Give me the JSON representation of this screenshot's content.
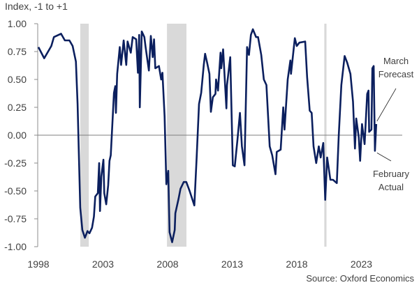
{
  "chart_data": {
    "type": "line",
    "ylabel": "Index, -1 to +1",
    "ylim": [
      -1,
      1
    ],
    "xlim": [
      1998,
      2025.5
    ],
    "yticks": [
      "1.00",
      "0.75",
      "0.50",
      "0.25",
      "0.00",
      "-0.25",
      "-0.50",
      "-0.75",
      "-1.00"
    ],
    "ytick_values": [
      1,
      0.75,
      0.5,
      0.25,
      0,
      -0.25,
      -0.5,
      -0.75,
      -1
    ],
    "xticks": [
      "1998",
      "2003",
      "2008",
      "2013",
      "2018",
      "2023"
    ],
    "xtick_values": [
      1998,
      2003,
      2008,
      2013,
      2018,
      2023
    ],
    "grid": false,
    "source": "Source: Oxford Economics",
    "recessions": [
      [
        2001.24,
        2001.9
      ],
      [
        2007.95,
        2009.46
      ],
      [
        2020.13,
        2020.3
      ]
    ],
    "annotations": [
      {
        "lines": [
          "March",
          "Forecast"
        ],
        "x": 2024.15,
        "y": 0.1
      },
      {
        "lines": [
          "February",
          "Actual"
        ],
        "x": 2024.05,
        "y": -0.14
      }
    ],
    "colors": {
      "line": "#0b1f5e",
      "recession": "#d9d9d9",
      "axis": "#8c8c8c"
    },
    "series": [
      {
        "name": "Index",
        "x": [
          1998.0,
          1998.45,
          1999.0,
          1999.2,
          1999.75,
          2000.05,
          2000.4,
          2000.65,
          2000.9,
          2001.03,
          2001.24,
          2001.4,
          2001.6,
          2001.8,
          2001.95,
          2002.15,
          2002.3,
          2002.4,
          2002.6,
          2002.7,
          2002.77,
          2002.87,
          2003.03,
          2003.1,
          2003.25,
          2003.4,
          2003.5,
          2003.6,
          2003.85,
          2003.95,
          2004.0,
          2004.1,
          2004.3,
          2004.4,
          2004.6,
          2004.8,
          2004.9,
          2005.15,
          2005.3,
          2005.57,
          2005.7,
          2005.8,
          2005.85,
          2006.0,
          2006.2,
          2006.3,
          2006.55,
          2006.7,
          2006.85,
          2006.95,
          2007.05,
          2007.33,
          2007.5,
          2007.6,
          2007.77,
          2007.9,
          2008.05,
          2008.15,
          2008.35,
          2008.55,
          2008.6,
          2008.85,
          2009.0,
          2009.25,
          2009.45,
          2009.7,
          2010.07,
          2010.25,
          2010.43,
          2010.6,
          2010.8,
          2010.9,
          2011.06,
          2011.24,
          2011.35,
          2011.5,
          2011.7,
          2011.75,
          2011.9,
          2012.1,
          2012.15,
          2012.3,
          2012.55,
          2012.6,
          2012.85,
          2013.05,
          2013.2,
          2013.4,
          2013.6,
          2013.75,
          2013.95,
          2014.15,
          2014.3,
          2014.45,
          2014.6,
          2014.85,
          2015.0,
          2015.25,
          2015.45,
          2015.65,
          2015.9,
          2016.1,
          2016.35,
          2016.45,
          2016.75,
          2016.95,
          2017.05,
          2017.3,
          2017.5,
          2017.55,
          2017.85,
          2018.0,
          2018.2,
          2018.65,
          2018.8,
          2019.0,
          2019.15,
          2019.3,
          2019.5,
          2019.7,
          2019.85,
          2020.05,
          2020.2,
          2020.35,
          2020.6,
          2020.8,
          2021.1,
          2021.25,
          2021.45,
          2021.7,
          2021.9,
          2022.15,
          2022.35,
          2022.5,
          2022.6,
          2022.8,
          2022.9,
          2023.05,
          2023.25,
          2023.45,
          2023.55,
          2023.6,
          2023.78,
          2023.85,
          2023.95,
          2024.05,
          2024.15
        ],
        "values": [
          0.79,
          0.69,
          0.8,
          0.88,
          0.91,
          0.85,
          0.85,
          0.8,
          0.66,
          0.28,
          -0.65,
          -0.85,
          -0.92,
          -0.86,
          -0.88,
          -0.83,
          -0.73,
          -0.55,
          -0.52,
          -0.25,
          -0.68,
          -0.37,
          -0.22,
          -0.52,
          -0.62,
          -0.45,
          -0.23,
          -0.18,
          0.38,
          0.44,
          0.2,
          0.55,
          0.79,
          0.63,
          0.85,
          0.63,
          0.84,
          0.74,
          0.88,
          0.86,
          0.56,
          0.9,
          0.25,
          0.93,
          0.88,
          0.79,
          0.58,
          0.89,
          0.7,
          0.86,
          0.6,
          0.62,
          0.5,
          0.56,
          0.17,
          -0.44,
          -0.32,
          -0.87,
          -0.96,
          -0.85,
          -0.7,
          -0.57,
          -0.48,
          -0.42,
          -0.42,
          -0.5,
          -0.63,
          -0.2,
          0.28,
          0.38,
          0.63,
          0.73,
          0.65,
          0.55,
          0.21,
          0.34,
          0.37,
          0.5,
          0.4,
          0.74,
          0.6,
          0.77,
          0.24,
          0.45,
          0.7,
          -0.27,
          -0.28,
          -0.05,
          0.2,
          -0.1,
          -0.27,
          0.79,
          0.72,
          0.9,
          0.95,
          0.88,
          0.88,
          0.72,
          0.5,
          0.45,
          -0.1,
          -0.18,
          -0.35,
          -0.15,
          -0.13,
          0.25,
          0.05,
          0.5,
          0.67,
          0.55,
          0.87,
          0.8,
          0.83,
          0.84,
          0.52,
          0.22,
          0.2,
          -0.1,
          -0.25,
          -0.1,
          -0.2,
          -0.07,
          -0.58,
          -0.2,
          -0.4,
          -0.4,
          -0.43,
          0.0,
          0.45,
          0.71,
          0.65,
          0.55,
          0.3,
          -0.12,
          0.15,
          -0.02,
          -0.23,
          0.1,
          -0.08,
          0.37,
          0.4,
          0.03,
          0.05,
          0.6,
          0.62,
          -0.14,
          0.1
        ]
      }
    ]
  }
}
